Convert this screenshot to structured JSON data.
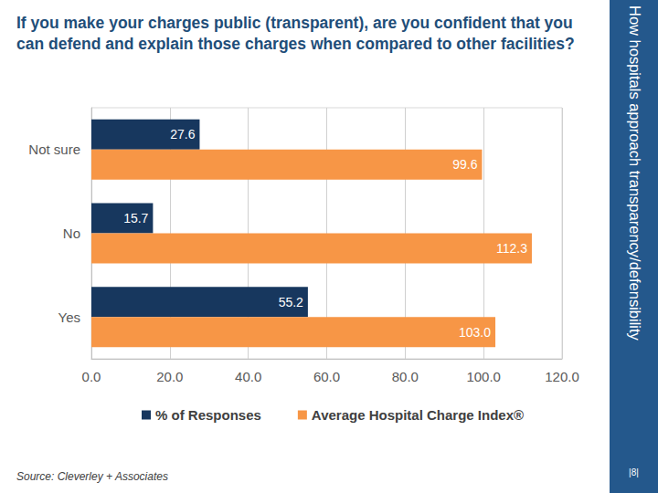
{
  "chart_data": {
    "type": "bar",
    "orientation": "horizontal",
    "title": "If you make your charges public (transparent), are you confident that you can defend and explain those charges when compared to other facilities?",
    "side_label": "How hospitals approach transparency/defensibility",
    "source": "Source: Cleverley + Associates",
    "page": "|8|",
    "categories": [
      "Not sure",
      "No",
      "Yes"
    ],
    "series": [
      {
        "name": "% of Responses",
        "color": "#17375e",
        "values": [
          27.6,
          15.7,
          55.2
        ]
      },
      {
        "name": "Average Hospital Charge Index®",
        "color": "#f79646",
        "values": [
          99.6,
          112.3,
          103.0
        ],
        "value_labels": [
          "99.6",
          "112.3",
          "103.0"
        ]
      }
    ],
    "xlim": [
      0,
      120
    ],
    "xticks": [
      {
        "value": 0,
        "label": "0.0"
      },
      {
        "value": 20,
        "label": "20.0"
      },
      {
        "value": 40,
        "label": "40.0"
      },
      {
        "value": 60,
        "label": "60.0"
      },
      {
        "value": 80,
        "label": "80.0"
      },
      {
        "value": 100,
        "label": "100.0"
      },
      {
        "value": 120,
        "label": "120.0"
      }
    ],
    "grid": true,
    "legend": "bottom",
    "data_labels": true
  }
}
